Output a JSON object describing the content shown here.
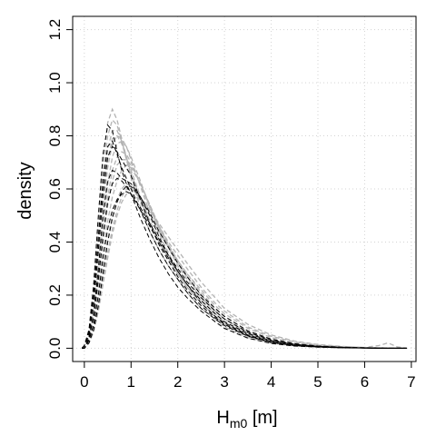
{
  "chart_data": {
    "type": "line",
    "xlabel": {
      "main": "H",
      "sub": "m0",
      "unit": " [m]"
    },
    "ylabel": "density",
    "xlim": [
      -0.25,
      7.1
    ],
    "ylim": [
      -0.05,
      1.25
    ],
    "x_ticks": [
      0,
      1,
      2,
      3,
      4,
      5,
      6,
      7
    ],
    "x_tick_labels": [
      "0",
      "1",
      "2",
      "3",
      "4",
      "5",
      "6",
      "7"
    ],
    "y_ticks": [
      0.0,
      0.2,
      0.4,
      0.6,
      0.8,
      1.0,
      1.2
    ],
    "y_tick_labels": [
      "0.0",
      "0.2",
      "0.4",
      "0.6",
      "0.8",
      "1.0",
      "1.2"
    ],
    "grid": true,
    "legend": "none",
    "colors": {
      "gray_curves": "#b3b3b3",
      "black_curves": "#000000",
      "grid": "#d3d3d3"
    },
    "x": [
      -0.05,
      0.0,
      0.1,
      0.2,
      0.3,
      0.4,
      0.5,
      0.6,
      0.7,
      0.8,
      0.9,
      1.0,
      1.2,
      1.4,
      1.6,
      1.8,
      2.0,
      2.2,
      2.5,
      2.8,
      3.0,
      3.5,
      4.0,
      4.5,
      5.0,
      5.5,
      6.0,
      6.3,
      6.5,
      6.7,
      6.9
    ],
    "gray_series": [
      {
        "values": [
          0.0,
          0.01,
          0.05,
          0.16,
          0.33,
          0.52,
          0.68,
          0.77,
          0.8,
          0.79,
          0.76,
          0.71,
          0.61,
          0.51,
          0.43,
          0.36,
          0.29,
          0.24,
          0.18,
          0.13,
          0.1,
          0.05,
          0.025,
          0.012,
          0.006,
          0.003,
          0.001,
          0.0,
          0.0,
          0.0,
          0.0
        ]
      },
      {
        "values": [
          0.0,
          0.01,
          0.06,
          0.2,
          0.42,
          0.65,
          0.8,
          0.86,
          0.84,
          0.78,
          0.71,
          0.65,
          0.55,
          0.46,
          0.39,
          0.33,
          0.28,
          0.23,
          0.17,
          0.12,
          0.09,
          0.045,
          0.022,
          0.01,
          0.005,
          0.002,
          0.001,
          0.0,
          0.0,
          0.0,
          0.0
        ]
      },
      {
        "values": [
          0.0,
          0.01,
          0.07,
          0.22,
          0.46,
          0.7,
          0.85,
          0.9,
          0.86,
          0.79,
          0.72,
          0.64,
          0.53,
          0.44,
          0.37,
          0.31,
          0.26,
          0.21,
          0.15,
          0.11,
          0.08,
          0.04,
          0.019,
          0.009,
          0.004,
          0.002,
          0.001,
          0.0,
          0.0,
          0.0,
          0.0
        ]
      },
      {
        "values": [
          0.0,
          0.0,
          0.03,
          0.1,
          0.22,
          0.36,
          0.48,
          0.57,
          0.63,
          0.67,
          0.69,
          0.68,
          0.62,
          0.54,
          0.46,
          0.39,
          0.33,
          0.28,
          0.21,
          0.15,
          0.12,
          0.066,
          0.034,
          0.017,
          0.008,
          0.004,
          0.002,
          0.001,
          0.0,
          0.0,
          0.0
        ]
      },
      {
        "values": [
          0.0,
          0.0,
          0.03,
          0.08,
          0.18,
          0.3,
          0.41,
          0.5,
          0.56,
          0.6,
          0.62,
          0.61,
          0.56,
          0.5,
          0.44,
          0.38,
          0.33,
          0.28,
          0.22,
          0.16,
          0.13,
          0.075,
          0.04,
          0.02,
          0.01,
          0.005,
          0.002,
          0.001,
          0.001,
          0.0,
          0.0
        ]
      },
      {
        "values": [
          0.0,
          0.01,
          0.04,
          0.13,
          0.28,
          0.46,
          0.62,
          0.72,
          0.77,
          0.78,
          0.76,
          0.72,
          0.63,
          0.53,
          0.45,
          0.38,
          0.31,
          0.26,
          0.19,
          0.14,
          0.11,
          0.055,
          0.028,
          0.014,
          0.007,
          0.003,
          0.001,
          0.0,
          0.0,
          0.0,
          0.0
        ]
      },
      {
        "values": [
          0.0,
          0.0,
          0.02,
          0.07,
          0.15,
          0.26,
          0.36,
          0.45,
          0.52,
          0.57,
          0.6,
          0.6,
          0.57,
          0.52,
          0.46,
          0.4,
          0.35,
          0.3,
          0.23,
          0.17,
          0.14,
          0.08,
          0.045,
          0.024,
          0.012,
          0.006,
          0.003,
          0.01,
          0.02,
          0.005,
          0.0
        ]
      },
      {
        "values": [
          0.0,
          0.01,
          0.05,
          0.17,
          0.36,
          0.56,
          0.71,
          0.79,
          0.8,
          0.77,
          0.72,
          0.67,
          0.57,
          0.48,
          0.41,
          0.35,
          0.29,
          0.24,
          0.18,
          0.13,
          0.1,
          0.05,
          0.024,
          0.011,
          0.005,
          0.002,
          0.001,
          0.0,
          0.0,
          0.0,
          0.0
        ]
      },
      {
        "values": [
          0.0,
          0.0,
          0.03,
          0.11,
          0.24,
          0.4,
          0.54,
          0.63,
          0.69,
          0.71,
          0.71,
          0.69,
          0.62,
          0.54,
          0.46,
          0.39,
          0.33,
          0.27,
          0.2,
          0.14,
          0.11,
          0.06,
          0.03,
          0.015,
          0.007,
          0.003,
          0.001,
          0.0,
          0.0,
          0.0,
          0.0
        ]
      },
      {
        "values": [
          0.0,
          0.0,
          0.02,
          0.06,
          0.14,
          0.24,
          0.34,
          0.43,
          0.5,
          0.55,
          0.58,
          0.58,
          0.56,
          0.52,
          0.47,
          0.42,
          0.37,
          0.32,
          0.25,
          0.19,
          0.15,
          0.09,
          0.05,
          0.027,
          0.014,
          0.007,
          0.003,
          0.002,
          0.001,
          0.0,
          0.0
        ]
      },
      {
        "values": [
          0.0,
          0.01,
          0.06,
          0.19,
          0.39,
          0.6,
          0.75,
          0.82,
          0.82,
          0.78,
          0.72,
          0.66,
          0.56,
          0.47,
          0.4,
          0.34,
          0.28,
          0.23,
          0.17,
          0.12,
          0.09,
          0.046,
          0.022,
          0.01,
          0.005,
          0.002,
          0.001,
          0.0,
          0.0,
          0.0,
          0.0
        ]
      },
      {
        "values": [
          0.0,
          0.0,
          0.04,
          0.12,
          0.26,
          0.43,
          0.57,
          0.67,
          0.72,
          0.74,
          0.73,
          0.7,
          0.62,
          0.53,
          0.45,
          0.38,
          0.32,
          0.27,
          0.2,
          0.14,
          0.11,
          0.058,
          0.029,
          0.014,
          0.007,
          0.003,
          0.001,
          0.0,
          0.0,
          0.0,
          0.0
        ]
      }
    ],
    "black_series": [
      {
        "values": [
          0.0,
          0.0,
          0.04,
          0.13,
          0.3,
          0.5,
          0.63,
          0.67,
          0.66,
          0.64,
          0.63,
          0.62,
          0.57,
          0.5,
          0.42,
          0.35,
          0.29,
          0.24,
          0.17,
          0.12,
          0.095,
          0.05,
          0.025,
          0.012,
          0.006,
          0.003,
          0.001,
          0.0,
          0.0,
          0.0,
          0.0
        ]
      },
      {
        "values": [
          0.0,
          0.01,
          0.06,
          0.2,
          0.42,
          0.63,
          0.76,
          0.78,
          0.73,
          0.68,
          0.64,
          0.6,
          0.52,
          0.44,
          0.37,
          0.31,
          0.26,
          0.21,
          0.15,
          0.11,
          0.085,
          0.045,
          0.022,
          0.01,
          0.005,
          0.002,
          0.001,
          0.0,
          0.0,
          0.0,
          0.0
        ]
      },
      {
        "values": [
          0.0,
          0.0,
          0.03,
          0.09,
          0.2,
          0.34,
          0.45,
          0.52,
          0.56,
          0.58,
          0.59,
          0.58,
          0.53,
          0.47,
          0.41,
          0.35,
          0.3,
          0.25,
          0.19,
          0.14,
          0.11,
          0.06,
          0.031,
          0.015,
          0.007,
          0.003,
          0.001,
          0.0,
          0.0,
          0.0,
          0.0
        ]
      },
      {
        "values": [
          0.0,
          0.01,
          0.07,
          0.24,
          0.5,
          0.73,
          0.84,
          0.82,
          0.74,
          0.67,
          0.62,
          0.58,
          0.49,
          0.41,
          0.34,
          0.28,
          0.23,
          0.19,
          0.14,
          0.1,
          0.075,
          0.038,
          0.018,
          0.008,
          0.004,
          0.002,
          0.001,
          0.0,
          0.0,
          0.0,
          0.0
        ]
      },
      {
        "values": [
          0.0,
          0.0,
          0.02,
          0.07,
          0.16,
          0.28,
          0.4,
          0.49,
          0.55,
          0.59,
          0.61,
          0.61,
          0.57,
          0.51,
          0.44,
          0.38,
          0.32,
          0.27,
          0.2,
          0.15,
          0.12,
          0.065,
          0.034,
          0.017,
          0.008,
          0.004,
          0.002,
          0.001,
          0.0,
          0.0,
          0.0
        ]
      },
      {
        "values": [
          0.0,
          0.01,
          0.05,
          0.17,
          0.37,
          0.58,
          0.72,
          0.76,
          0.74,
          0.71,
          0.68,
          0.65,
          0.56,
          0.47,
          0.39,
          0.33,
          0.27,
          0.22,
          0.16,
          0.115,
          0.09,
          0.047,
          0.023,
          0.011,
          0.005,
          0.002,
          0.001,
          0.0,
          0.0,
          0.0,
          0.0
        ]
      },
      {
        "values": [
          0.0,
          0.0,
          0.04,
          0.12,
          0.26,
          0.42,
          0.55,
          0.62,
          0.64,
          0.63,
          0.61,
          0.58,
          0.52,
          0.46,
          0.4,
          0.34,
          0.29,
          0.24,
          0.18,
          0.13,
          0.1,
          0.055,
          0.028,
          0.014,
          0.007,
          0.003,
          0.001,
          0.0,
          0.0,
          0.0,
          0.0
        ]
      }
    ]
  }
}
